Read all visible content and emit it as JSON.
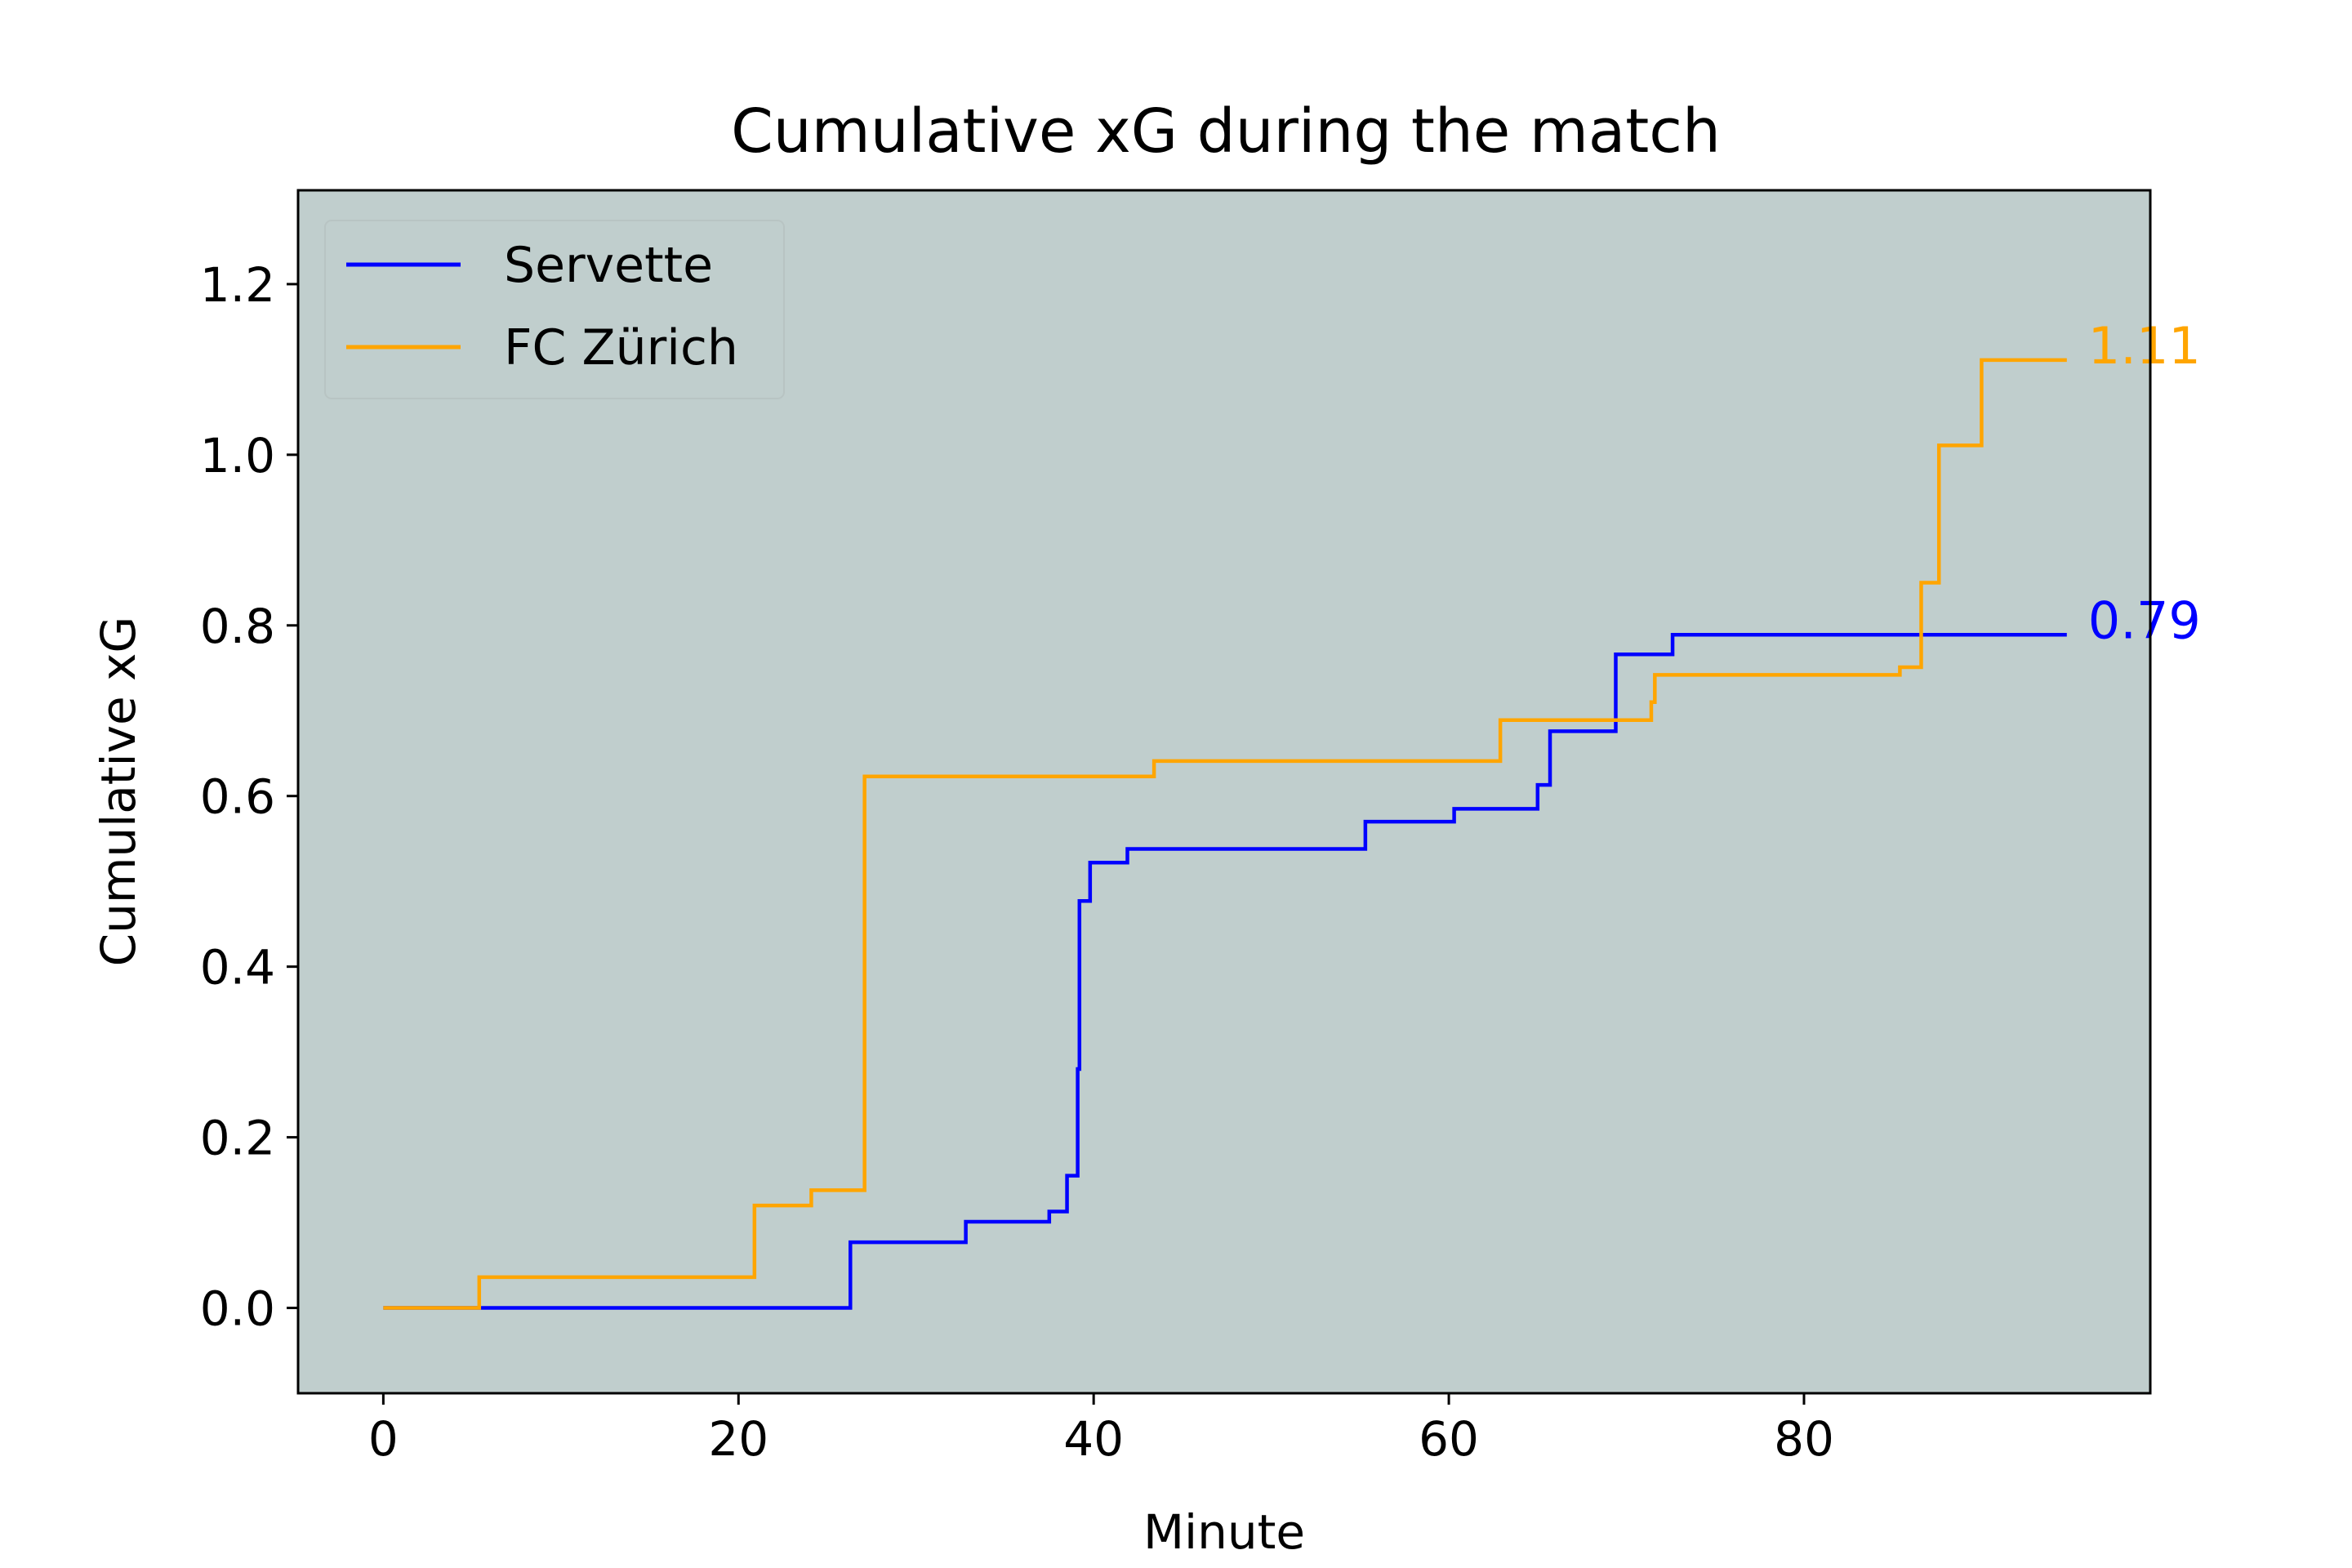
{
  "chart_data": {
    "type": "line",
    "step": true,
    "title": "Cumulative xG during the match",
    "xlabel": "Minute",
    "ylabel": "Cumulative xG",
    "xlim": [
      -4.8,
      99.5
    ],
    "ylim": [
      -0.1,
      1.31
    ],
    "x_ticks": [
      0,
      20,
      40,
      60,
      80
    ],
    "y_ticks": [
      0.0,
      0.2,
      0.4,
      0.6,
      0.8,
      1.0,
      1.2
    ],
    "x_tick_labels": [
      "0",
      "20",
      "40",
      "60",
      "80"
    ],
    "y_tick_labels": [
      "0.0",
      "0.2",
      "0.4",
      "0.6",
      "0.8",
      "1.0",
      "1.2"
    ],
    "background": "#c0cecd",
    "grid": false,
    "legend_position": "upper-left",
    "series": [
      {
        "name": "Servette",
        "color": "#0000ff",
        "final_label": "0.79",
        "x": [
          0,
          26.3,
          32.8,
          37.5,
          38.5,
          39.1,
          39.2,
          39.8,
          41.9,
          55.3,
          60.3,
          65.0,
          65.7,
          69.4,
          72.6,
          94.8
        ],
        "y": [
          0,
          0.077,
          0.101,
          0.113,
          0.155,
          0.28,
          0.477,
          0.522,
          0.538,
          0.57,
          0.585,
          0.613,
          0.676,
          0.766,
          0.789,
          0.789
        ]
      },
      {
        "name": "FC Zürich",
        "color": "#ffa500",
        "final_label": "1.11",
        "x": [
          0,
          5.4,
          20.9,
          24.1,
          27.1,
          43.4,
          62.9,
          71.4,
          71.6,
          85.4,
          86.6,
          87.6,
          90.0,
          94.8
        ],
        "y": [
          0,
          0.036,
          0.12,
          0.138,
          0.623,
          0.641,
          0.689,
          0.71,
          0.742,
          0.751,
          0.85,
          1.011,
          1.111,
          1.111
        ]
      }
    ]
  }
}
